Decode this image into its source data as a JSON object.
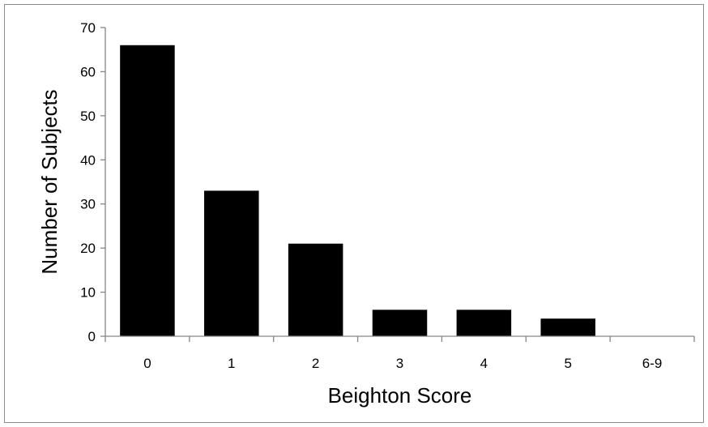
{
  "chart_data": {
    "type": "bar",
    "title": "",
    "xlabel": "Beighton Score",
    "ylabel": "Number of Subjects",
    "categories": [
      "0",
      "1",
      "2",
      "3",
      "4",
      "5",
      "6-9"
    ],
    "values": [
      66,
      33,
      21,
      6,
      6,
      4,
      0
    ],
    "ylim": [
      0,
      70
    ],
    "yticks": [
      "0",
      "10",
      "20",
      "30",
      "40",
      "50",
      "60",
      "70"
    ],
    "grid": false,
    "legend": "none",
    "bar_color": "#000000",
    "axis_color": "#868686"
  }
}
